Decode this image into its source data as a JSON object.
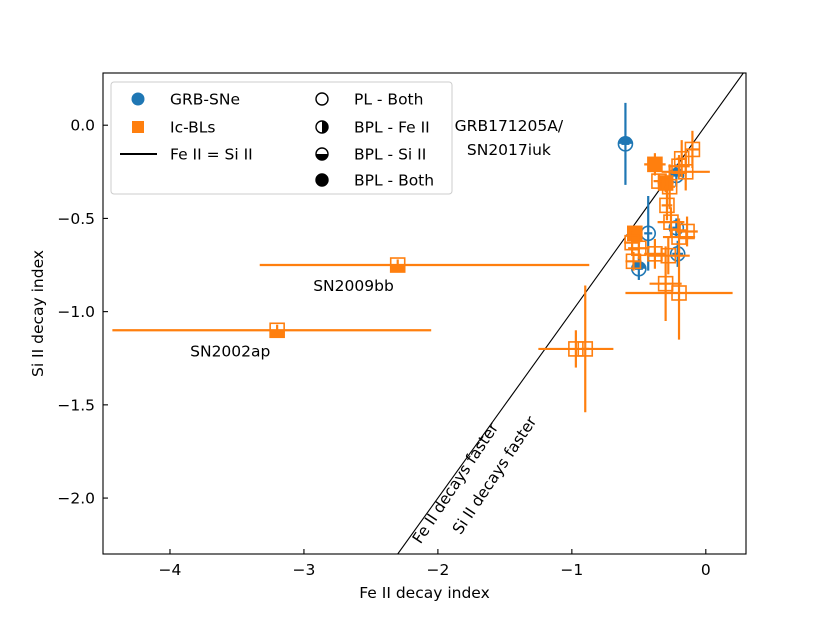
{
  "chart_data": {
    "type": "scatter",
    "title": "",
    "xlabel": "Fe II decay index",
    "ylabel": "Si II decay index",
    "xlim": [
      -4.5,
      0.3
    ],
    "ylim": [
      -2.3,
      0.28
    ],
    "xticks": [
      -4,
      -3,
      -2,
      -1,
      0
    ],
    "xtick_labels": [
      "−4",
      "−3",
      "−2",
      "−1",
      "0"
    ],
    "yticks": [
      0.0,
      -0.5,
      -1.0,
      -1.5,
      -2.0
    ],
    "ytick_labels": [
      "0.0",
      "−0.5",
      "−1.0",
      "−1.5",
      "−2.0"
    ],
    "grid": false,
    "legend_position": "top-left",
    "legend": [
      {
        "label": "GRB-SNe",
        "marker": "circle",
        "fill": "blue"
      },
      {
        "label": "Ic-BLs",
        "marker": "square",
        "fill": "orange"
      },
      {
        "label": "Fe II = Si II",
        "marker": "line"
      },
      {
        "label": "PL - Both",
        "marker": "circle",
        "fill": "none"
      },
      {
        "label": "BPL - Fe II",
        "marker": "circle",
        "fill": "left"
      },
      {
        "label": "BPL - Si II",
        "marker": "circle",
        "fill": "top"
      },
      {
        "label": "BPL - Both",
        "marker": "circle",
        "fill": "full"
      }
    ],
    "colors": {
      "grb": "#1f77b4",
      "icbl": "#ff7f0e",
      "line": "#000000",
      "axis": "#000000"
    },
    "annotations": [
      {
        "text": "GRB171205A/",
        "x": -1.47,
        "y": -0.03
      },
      {
        "text": "SN2017iuk",
        "x": -1.47,
        "y": -0.16
      },
      {
        "text": "SN2009bb",
        "x": -2.63,
        "y": -0.89
      },
      {
        "text": "SN2002ap",
        "x": -3.55,
        "y": -1.24
      },
      {
        "text": "Fe II decays faster",
        "x": -2.13,
        "y": -2.25,
        "rotate": -56.3
      },
      {
        "text": "Si II decays faster",
        "x": -1.83,
        "y": -2.2,
        "rotate": -56.3
      }
    ],
    "series": [
      {
        "name": "GRB-SNe",
        "marker": "circle",
        "points": [
          {
            "x": -0.6,
            "y": -0.1,
            "xerr": 0.03,
            "yerr": 0.22,
            "fill": "top"
          },
          {
            "x": -0.5,
            "y": -0.77,
            "xerr": 0.03,
            "yerr": 0.06,
            "fill": "top"
          },
          {
            "x": -0.43,
            "y": -0.58,
            "xerr": 0.03,
            "yerr": 0.2,
            "fill": "none"
          },
          {
            "x": -0.22,
            "y": -0.27,
            "xerr": 0.04,
            "yerr": 0.06,
            "fill": "top"
          },
          {
            "x": -0.22,
            "y": -0.55,
            "xerr": 0.03,
            "yerr": 0.05,
            "fill": "none"
          },
          {
            "x": -0.21,
            "y": -0.69,
            "xerr": 0.04,
            "yerr": 0.07,
            "fill": "none"
          }
        ]
      },
      {
        "name": "Ic-BLs",
        "marker": "square",
        "points": [
          {
            "x": -2.3,
            "y": -0.75,
            "xerr_left": 1.03,
            "xerr_right": 1.43,
            "yerr": 0.03,
            "fill": "bottom"
          },
          {
            "x": -3.2,
            "y": -1.1,
            "xerr_left": 1.23,
            "xerr_right": 1.15,
            "yerr": 0.03,
            "fill": "bottom"
          },
          {
            "x": -0.97,
            "y": -1.2,
            "xerr": 0.28,
            "yerr": 0.1,
            "fill": "none"
          },
          {
            "x": -0.9,
            "y": -1.2,
            "xerr": 0.03,
            "yerr": 0.34,
            "fill": "none"
          },
          {
            "x": -0.38,
            "y": -0.21,
            "xerr": 0.08,
            "yerr": 0.06,
            "fill": "full"
          },
          {
            "x": -0.3,
            "y": -0.31,
            "xerr": 0.06,
            "yerr": 0.05,
            "fill": "full"
          },
          {
            "x": -0.53,
            "y": -0.58,
            "xerr": 0.04,
            "yerr": 0.04,
            "fill": "full"
          },
          {
            "x": -0.35,
            "y": -0.3,
            "xerr": 0.04,
            "yerr": 0.04,
            "fill": "none"
          },
          {
            "x": -0.27,
            "y": -0.33,
            "xerr": 0.04,
            "yerr": 0.12,
            "fill": "none"
          },
          {
            "x": -0.2,
            "y": -0.22,
            "xerr": 0.08,
            "yerr": 0.06,
            "fill": "none"
          },
          {
            "x": -0.15,
            "y": -0.25,
            "xerr": 0.18,
            "yerr": 0.1,
            "fill": "none"
          },
          {
            "x": -0.1,
            "y": -0.13,
            "xerr": 0.05,
            "yerr": 0.1,
            "fill": "none"
          },
          {
            "x": -0.18,
            "y": -0.18,
            "xerr": 0.04,
            "yerr": 0.1,
            "fill": "none"
          },
          {
            "x": -0.29,
            "y": -0.43,
            "xerr": 0.04,
            "yerr": 0.08,
            "fill": "none"
          },
          {
            "x": -0.26,
            "y": -0.52,
            "xerr": 0.1,
            "yerr": 0.08,
            "fill": "none"
          },
          {
            "x": -0.14,
            "y": -0.57,
            "xerr": 0.08,
            "yerr": 0.08,
            "fill": "none"
          },
          {
            "x": -0.2,
            "y": -0.6,
            "xerr": 0.12,
            "yerr": 0.1,
            "fill": "none"
          },
          {
            "x": -0.55,
            "y": -0.63,
            "xerr": 0.06,
            "yerr": 0.06,
            "fill": "none"
          },
          {
            "x": -0.5,
            "y": -0.66,
            "xerr": 0.08,
            "yerr": 0.06,
            "fill": "none"
          },
          {
            "x": -0.54,
            "y": -0.73,
            "xerr": 0.06,
            "yerr": 0.05,
            "fill": "none"
          },
          {
            "x": -0.38,
            "y": -0.69,
            "xerr": 0.08,
            "yerr": 0.08,
            "fill": "none"
          },
          {
            "x": -0.28,
            "y": -0.7,
            "xerr": 0.16,
            "yerr": 0.1,
            "fill": "none"
          },
          {
            "x": -0.3,
            "y": -0.85,
            "xerr": 0.12,
            "yerr": 0.2,
            "fill": "none"
          },
          {
            "x": -0.2,
            "y": -0.9,
            "xerr": 0.4,
            "yerr": 0.25,
            "fill": "none"
          }
        ]
      }
    ]
  }
}
